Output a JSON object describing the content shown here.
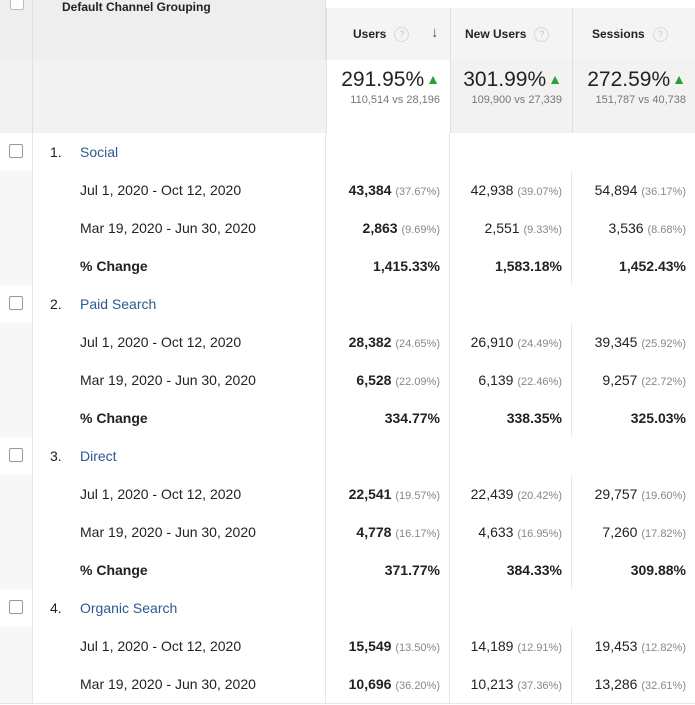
{
  "header": {
    "dimension_title": "Default Channel Grouping",
    "columns": [
      {
        "label": "Users",
        "help": "?",
        "sort": "↓"
      },
      {
        "label": "New Users",
        "help": "?"
      },
      {
        "label": "Sessions",
        "help": "?"
      }
    ]
  },
  "totals": [
    {
      "pct": "291.95%",
      "vs": "110,514 vs 28,196"
    },
    {
      "pct": "301.99%",
      "vs": "109,900 vs 27,339"
    },
    {
      "pct": "272.59%",
      "vs": "151,787 vs 40,738"
    }
  ],
  "up_arrow": "▲",
  "groups": [
    {
      "num": "1.",
      "channel": "Social",
      "rows": [
        {
          "label": "Jul 1, 2020 - Oct 12, 2020",
          "v": [
            [
              "43,384",
              "(37.67%)"
            ],
            [
              "42,938",
              "(39.07%)"
            ],
            [
              "54,894",
              "(36.17%)"
            ]
          ]
        },
        {
          "label": "Mar 19, 2020 - Jun 30, 2020",
          "v": [
            [
              "2,863",
              "(9.69%)"
            ],
            [
              "2,551",
              "(9.33%)"
            ],
            [
              "3,536",
              "(8.68%)"
            ]
          ]
        }
      ],
      "change_label": "% Change",
      "change": [
        "1,415.33%",
        "1,583.18%",
        "1,452.43%"
      ]
    },
    {
      "num": "2.",
      "channel": "Paid Search",
      "rows": [
        {
          "label": "Jul 1, 2020 - Oct 12, 2020",
          "v": [
            [
              "28,382",
              "(24.65%)"
            ],
            [
              "26,910",
              "(24.49%)"
            ],
            [
              "39,345",
              "(25.92%)"
            ]
          ]
        },
        {
          "label": "Mar 19, 2020 - Jun 30, 2020",
          "v": [
            [
              "6,528",
              "(22.09%)"
            ],
            [
              "6,139",
              "(22.46%)"
            ],
            [
              "9,257",
              "(22.72%)"
            ]
          ]
        }
      ],
      "change_label": "% Change",
      "change": [
        "334.77%",
        "338.35%",
        "325.03%"
      ]
    },
    {
      "num": "3.",
      "channel": "Direct",
      "rows": [
        {
          "label": "Jul 1, 2020 - Oct 12, 2020",
          "v": [
            [
              "22,541",
              "(19.57%)"
            ],
            [
              "22,439",
              "(20.42%)"
            ],
            [
              "29,757",
              "(19.60%)"
            ]
          ]
        },
        {
          "label": "Mar 19, 2020 - Jun 30, 2020",
          "v": [
            [
              "4,778",
              "(16.17%)"
            ],
            [
              "4,633",
              "(16.95%)"
            ],
            [
              "7,260",
              "(17.82%)"
            ]
          ]
        }
      ],
      "change_label": "% Change",
      "change": [
        "371.77%",
        "384.33%",
        "309.88%"
      ]
    },
    {
      "num": "4.",
      "channel": "Organic Search",
      "rows": [
        {
          "label": "Jul 1, 2020 - Oct 12, 2020",
          "v": [
            [
              "15,549",
              "(13.50%)"
            ],
            [
              "14,189",
              "(12.91%)"
            ],
            [
              "19,453",
              "(12.82%)"
            ]
          ]
        },
        {
          "label": "Mar 19, 2020 - Jun 30, 2020",
          "v": [
            [
              "10,696",
              "(36.20%)"
            ],
            [
              "10,213",
              "(37.36%)"
            ],
            [
              "13,286",
              "(32.61%)"
            ]
          ]
        }
      ]
    }
  ],
  "colors": {
    "link": "#2a5a8e",
    "up": "#2e9e39",
    "header_bg": "#eeeeee"
  }
}
